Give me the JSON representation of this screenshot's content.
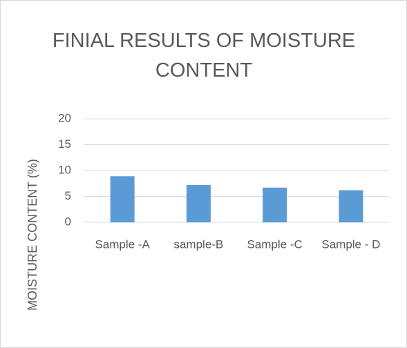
{
  "chart_data": {
    "type": "bar",
    "title": "FINIAL RESULTS OF MOISTURE CONTENT",
    "y_label": "MOISTURE CONTENT (%)",
    "categories": [
      "Sample -A",
      "sample-B",
      "Sample -C",
      "Sample - D"
    ],
    "values": [
      8.9,
      7.2,
      6.7,
      6.2
    ],
    "color": "#5b9bd5",
    "ylim": [
      0,
      20
    ],
    "yticks": [
      0,
      5,
      10,
      15,
      20
    ],
    "grid": true
  }
}
